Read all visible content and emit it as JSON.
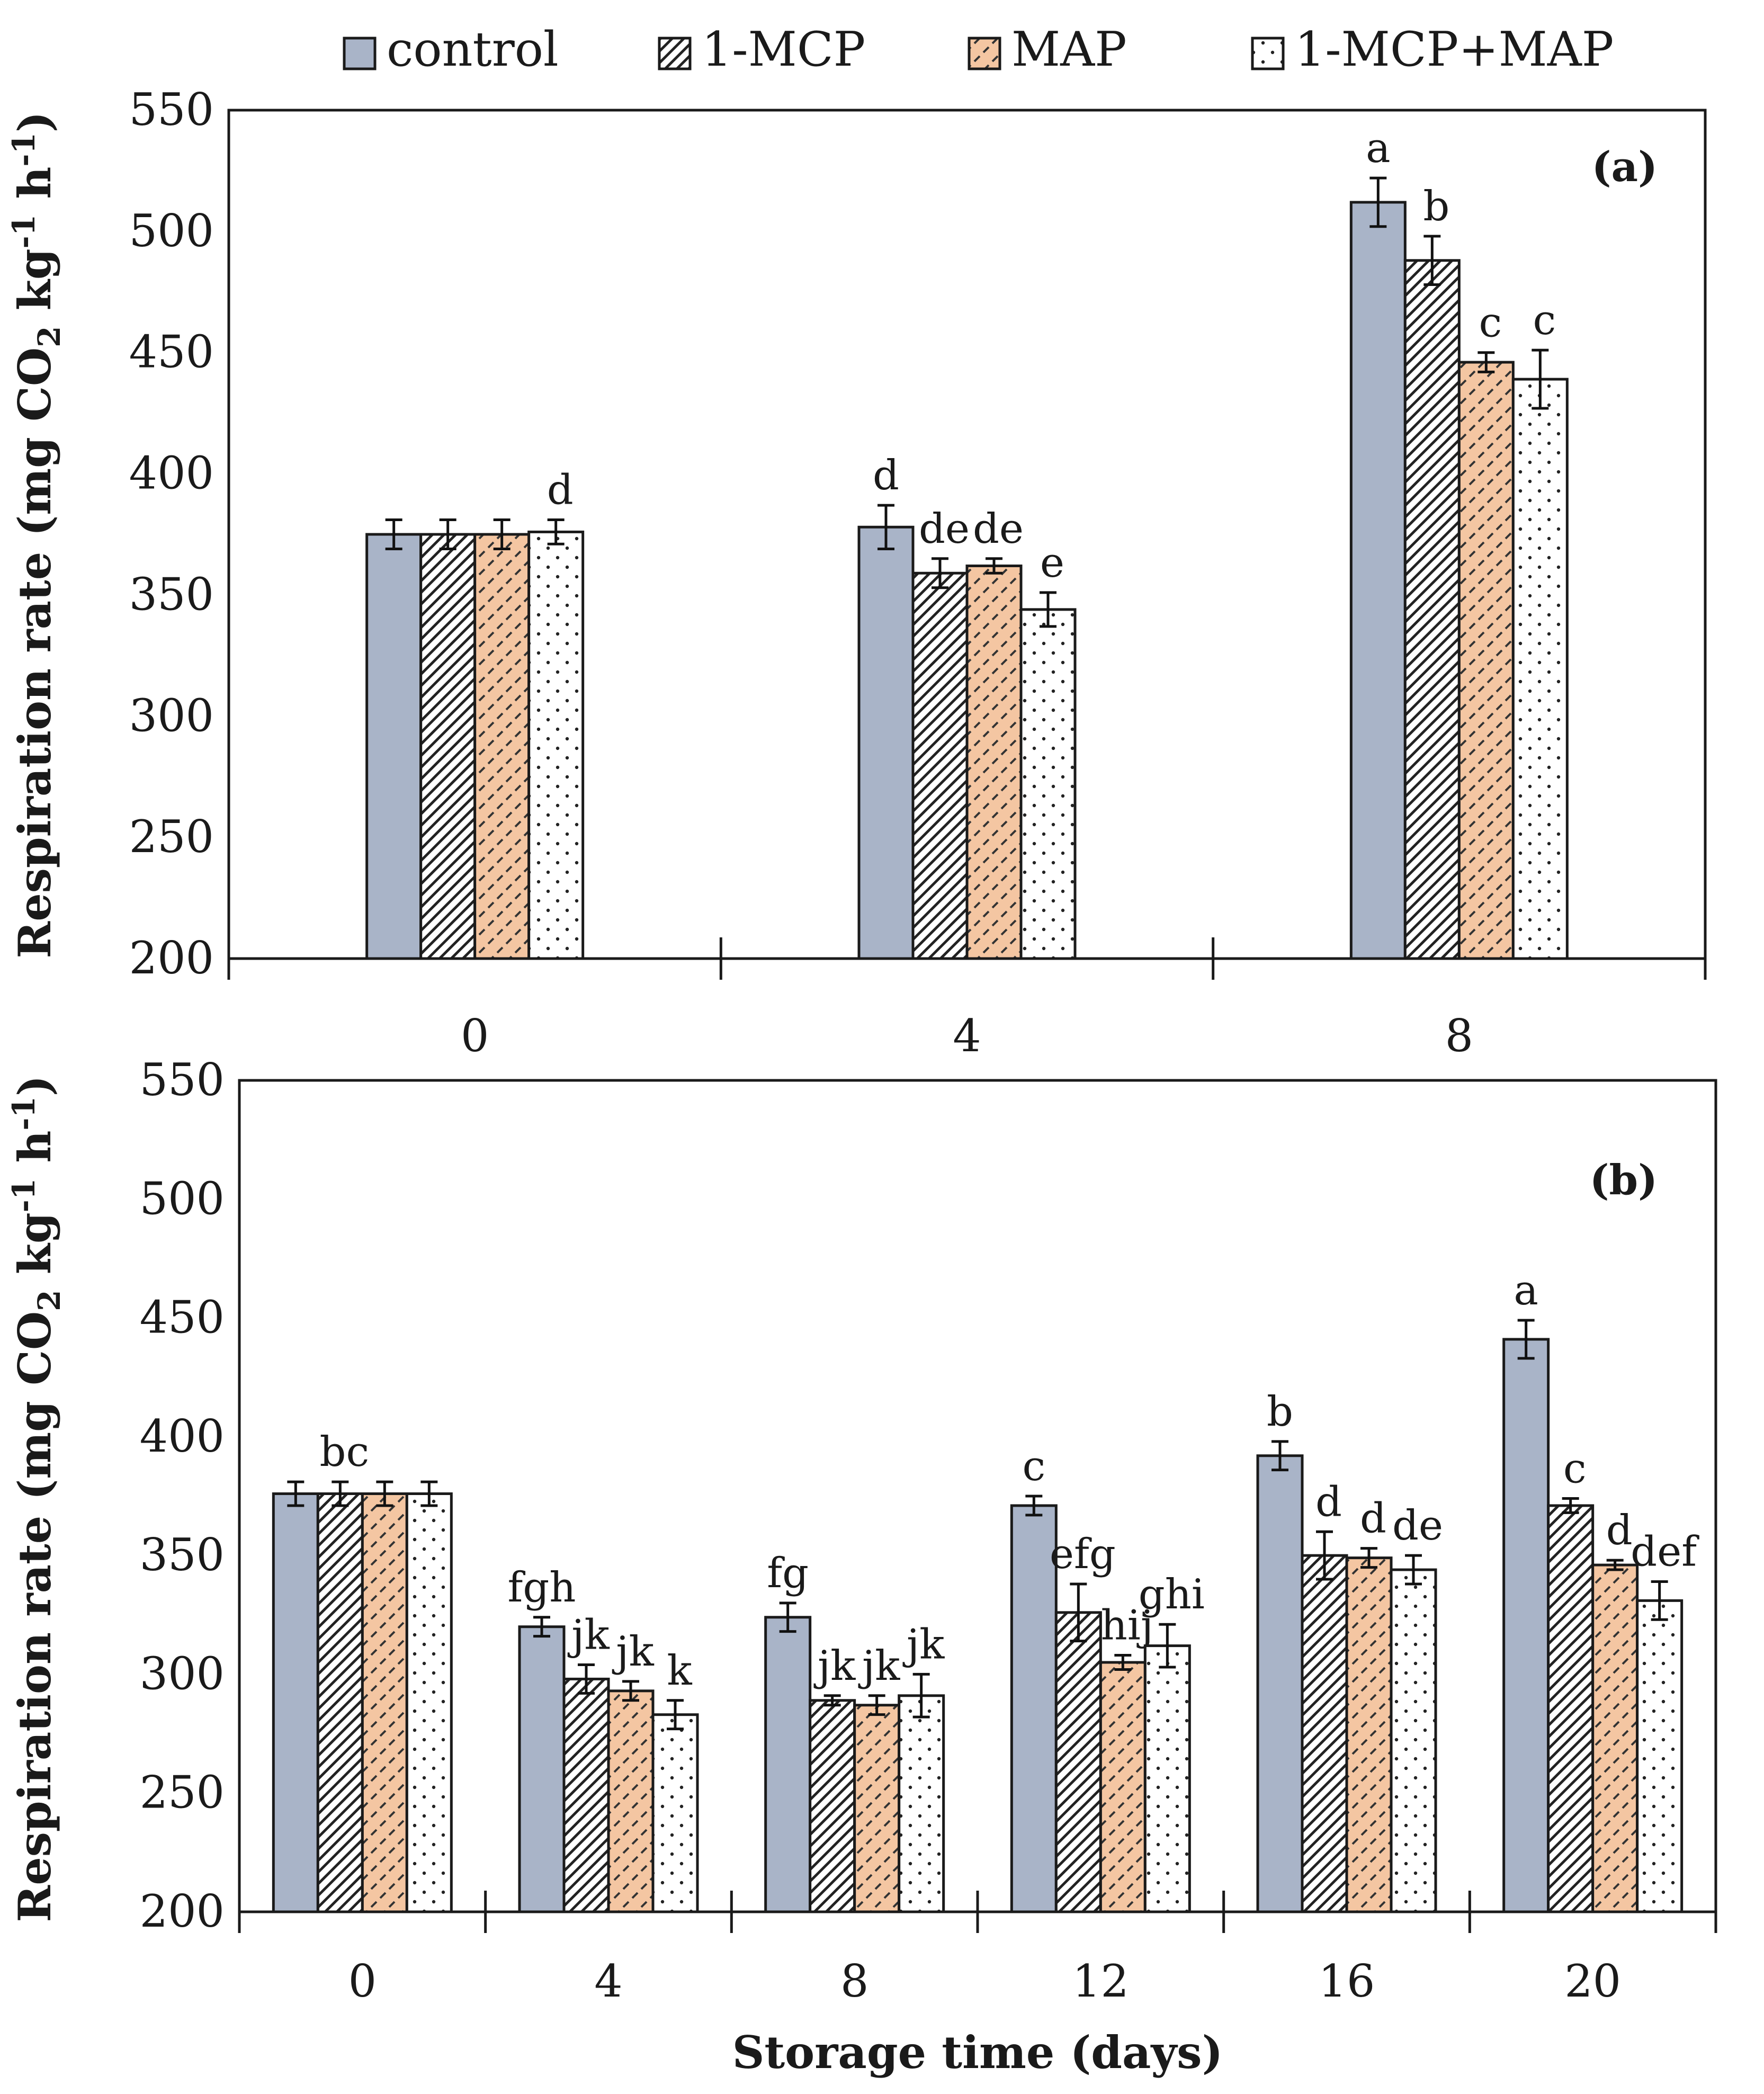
{
  "legend": [
    {
      "key": "control",
      "label": "control",
      "fill": "#A9B4C8",
      "pattern": "solid"
    },
    {
      "key": "mcp",
      "label": "1-MCP",
      "fill": "#ffffff",
      "pattern": "diag"
    },
    {
      "key": "map",
      "label": "MAP",
      "fill": "#F4C6A2",
      "pattern": "dash"
    },
    {
      "key": "mcpmap",
      "label": "1-MCP+MAP",
      "fill": "#ffffff",
      "pattern": "dots"
    }
  ],
  "chart_data": [
    {
      "type": "bar",
      "panel_label": "(a)",
      "categories": [
        "0",
        "4",
        "8"
      ],
      "ylabel": "Respiration rate (mg CO2 kg-1 h-1)",
      "ylabel_parts": {
        "pre": "Respiration rate (mg CO",
        "sub": "2",
        "mid": " kg",
        "sup1": "-1",
        "mid2": " h",
        "sup2": "-1",
        "post": ")"
      },
      "xlabel": "",
      "ylim": [
        200,
        550
      ],
      "yticks": [
        "200",
        "250",
        "300",
        "350",
        "400",
        "450",
        "500",
        "550"
      ],
      "series": [
        {
          "name": "control",
          "values": [
            375,
            378,
            512
          ],
          "errors": [
            6,
            9,
            10
          ],
          "letters": [
            "",
            "d",
            "a"
          ]
        },
        {
          "name": "1-MCP",
          "values": [
            375,
            359,
            488
          ],
          "errors": [
            6,
            6,
            10
          ],
          "letters": [
            "",
            "de",
            "b"
          ]
        },
        {
          "name": "MAP",
          "values": [
            375,
            362,
            446
          ],
          "errors": [
            6,
            3,
            4
          ],
          "letters": [
            "",
            "de",
            "c"
          ]
        },
        {
          "name": "1-MCP+MAP",
          "values": [
            376,
            344,
            439
          ],
          "errors": [
            5,
            7,
            12
          ],
          "letters": [
            "d",
            "e",
            "c"
          ]
        }
      ]
    },
    {
      "type": "bar",
      "panel_label": "(b)",
      "categories": [
        "0",
        "4",
        "8",
        "12",
        "16",
        "20"
      ],
      "ylabel": "Respiration rate (mg CO2 kg-1 h-1)",
      "ylabel_parts": {
        "pre": "Respiration rate (mg CO",
        "sub": "2",
        "mid": " kg",
        "sup1": "-1",
        "mid2": " h",
        "sup2": "-1",
        "post": ")"
      },
      "xlabel": "Storage time (days)",
      "ylim": [
        200,
        550
      ],
      "yticks": [
        "200",
        "250",
        "300",
        "350",
        "400",
        "450",
        "500",
        "550"
      ],
      "series": [
        {
          "name": "control",
          "values": [
            376,
            320,
            324,
            371,
            392,
            441
          ],
          "errors": [
            5,
            4,
            6,
            4,
            6,
            8
          ],
          "letters": [
            "",
            "fgh",
            "fg",
            "c",
            "b",
            "a"
          ]
        },
        {
          "name": "1-MCP",
          "values": [
            376,
            298,
            289,
            326,
            350,
            371
          ],
          "errors": [
            5,
            6,
            2,
            12,
            10,
            3
          ],
          "letters": [
            "bc",
            "jk",
            "jk",
            "efg",
            "d",
            "c"
          ]
        },
        {
          "name": "MAP",
          "values": [
            376,
            293,
            287,
            305,
            349,
            346
          ],
          "errors": [
            5,
            4,
            4,
            3,
            4,
            2
          ],
          "letters": [
            "",
            "jk",
            "jk",
            "hij",
            "d",
            "d"
          ]
        },
        {
          "name": "1-MCP+MAP",
          "values": [
            376,
            283,
            291,
            312,
            344,
            331
          ],
          "errors": [
            5,
            6,
            9,
            9,
            6,
            8
          ],
          "letters": [
            "",
            "k",
            "jk",
            "ghi",
            "de",
            "def"
          ]
        }
      ]
    }
  ]
}
